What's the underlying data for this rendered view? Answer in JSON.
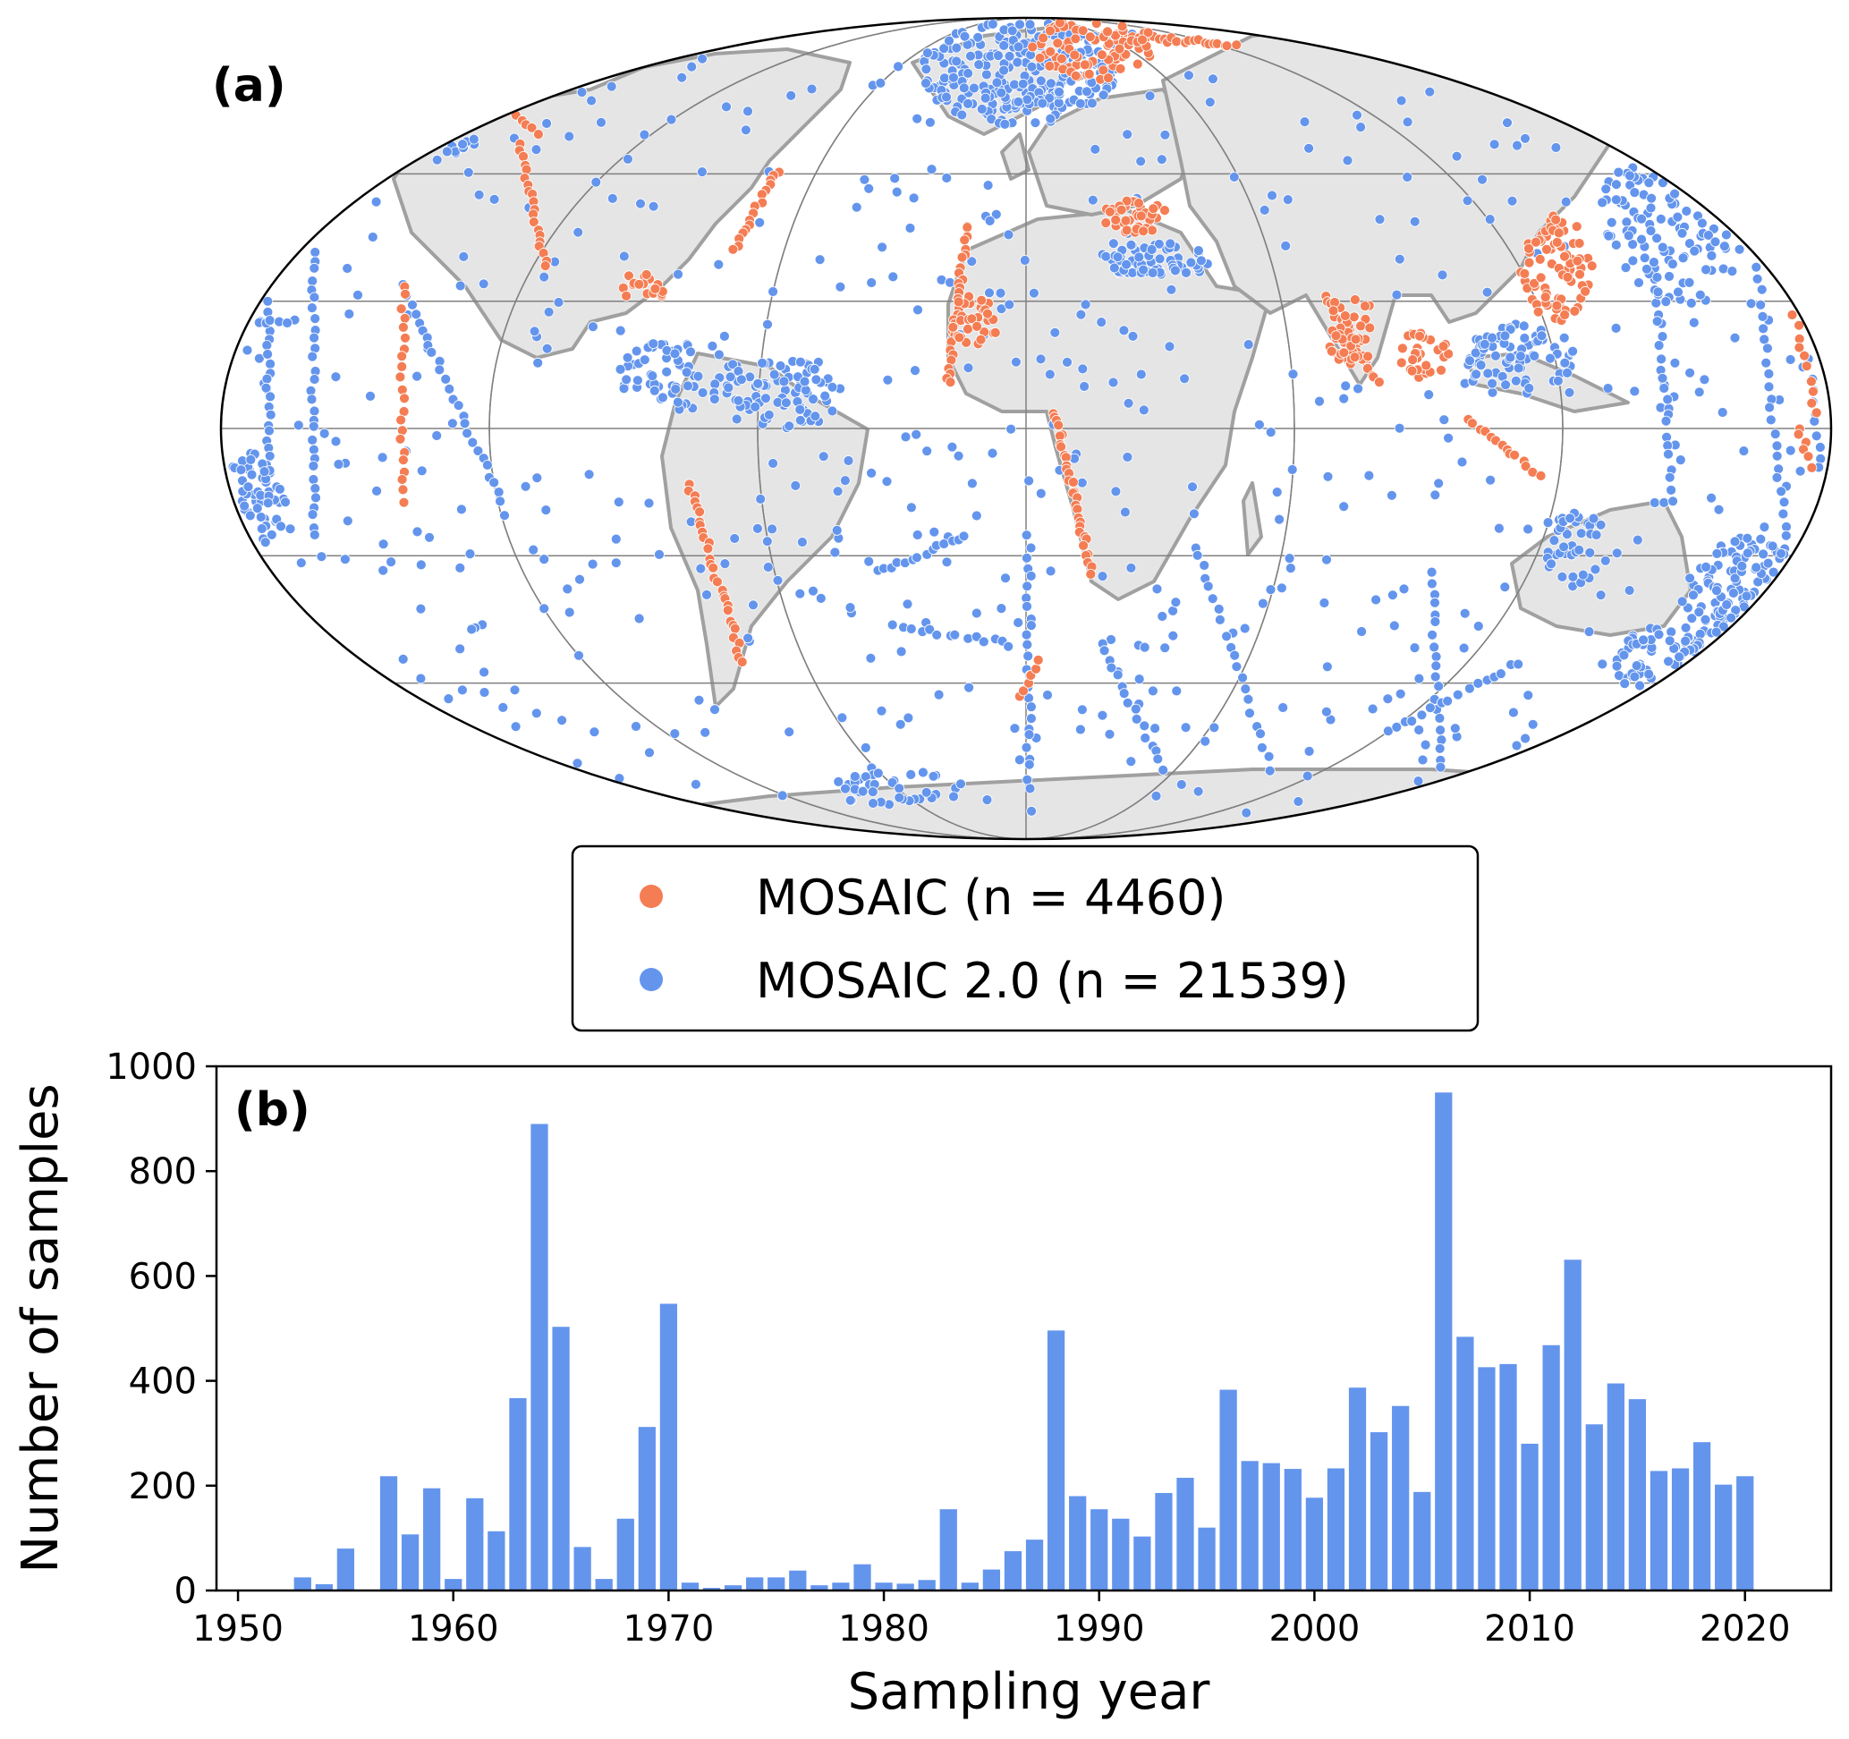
{
  "panel_a": {
    "label": "(a)",
    "legend": [
      {
        "name": "MOSAIC (n = 4460)",
        "color": "#f47d53"
      },
      {
        "name": "MOSAIC 2.0 (n = 21539)",
        "color": "#6495ed"
      }
    ],
    "colors": {
      "land": "#e5e5e5",
      "coast": "#a0a0a0",
      "grid": "#808080",
      "outline": "#000000"
    }
  },
  "chart_data": {
    "type": "bar",
    "panel_label": "(b)",
    "xlabel": "Sampling year",
    "ylabel": "Number of samples",
    "xlim": [
      1949,
      2024
    ],
    "ylim": [
      0,
      1000
    ],
    "xticks": [
      1950,
      1960,
      1970,
      1980,
      1990,
      2000,
      2010,
      2020
    ],
    "yticks": [
      0,
      200,
      400,
      600,
      800,
      1000
    ],
    "bar_color": "#6495ed",
    "x": [
      1953,
      1954,
      1955,
      1957,
      1958,
      1959,
      1960,
      1961,
      1962,
      1963,
      1964,
      1965,
      1966,
      1967,
      1968,
      1969,
      1970,
      1971,
      1972,
      1973,
      1974,
      1975,
      1976,
      1977,
      1978,
      1979,
      1980,
      1981,
      1982,
      1983,
      1984,
      1985,
      1986,
      1987,
      1988,
      1989,
      1990,
      1991,
      1992,
      1993,
      1994,
      1995,
      1996,
      1997,
      1998,
      1999,
      2000,
      2001,
      2002,
      2003,
      2004,
      2005,
      2006,
      2007,
      2008,
      2009,
      2010,
      2011,
      2012,
      2013,
      2014,
      2015,
      2016,
      2017,
      2018,
      2019,
      2020
    ],
    "values": [
      25,
      12,
      80,
      218,
      107,
      195,
      22,
      176,
      113,
      367,
      890,
      503,
      83,
      22,
      137,
      312,
      547,
      15,
      5,
      10,
      25,
      25,
      38,
      10,
      15,
      50,
      15,
      13,
      20,
      155,
      15,
      40,
      75,
      97,
      496,
      180,
      155,
      137,
      103,
      186,
      215,
      120,
      383,
      247,
      243,
      232,
      177,
      233,
      387,
      302,
      352,
      188,
      950,
      484,
      426,
      432,
      280,
      468,
      631,
      317,
      395,
      365,
      228,
      233,
      283,
      202,
      218
    ]
  }
}
